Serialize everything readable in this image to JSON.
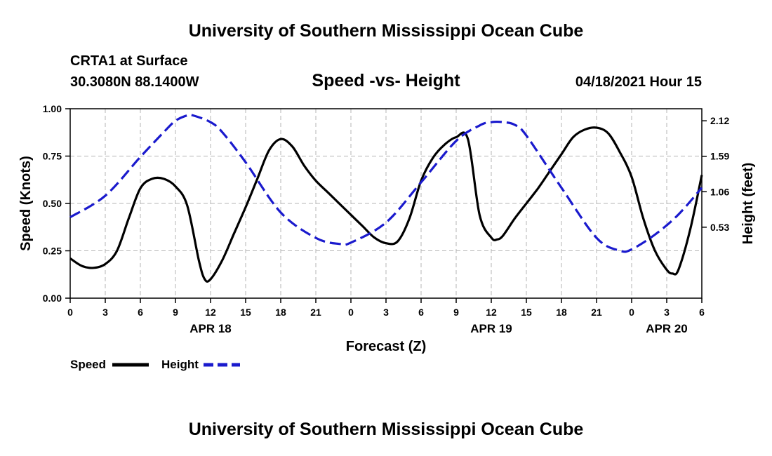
{
  "header": {
    "org_title": "University of Southern Mississippi Ocean Cube",
    "station": "CRTA1 at Surface",
    "coords": "30.3080N  88.1400W",
    "chart_title": "Speed -vs- Height",
    "datetime": "04/18/2021 Hour 15"
  },
  "footer": {
    "org_title": "University of Southern Mississippi Ocean Cube"
  },
  "colors": {
    "speed": "#000000",
    "height": "#1a1acd",
    "grid": "#b4b4b4"
  },
  "chart_data": {
    "type": "line",
    "title": "Speed -vs- Height",
    "xlabel": "Forecast (Z)",
    "ylabel": "Speed (Knots)",
    "y2label": "Height (feet)",
    "x_range_hours": [
      0,
      54
    ],
    "x_tick_labels": [
      "0",
      "3",
      "6",
      "9",
      "12",
      "15",
      "18",
      "21",
      "0",
      "3",
      "6",
      "9",
      "12",
      "15",
      "18",
      "21",
      "0",
      "3",
      "6"
    ],
    "date_labels": [
      {
        "label": "APR 18",
        "hour": 12
      },
      {
        "label": "APR 19",
        "hour": 36
      },
      {
        "label": "APR 20",
        "hour": 51
      }
    ],
    "ylim": [
      0,
      1
    ],
    "y_ticks": [
      0,
      0.25,
      0.5,
      0.75,
      1.0
    ],
    "y_tick_labels": [
      "0.00",
      "0.25",
      "0.50",
      "0.75",
      "1.00"
    ],
    "y2lim": [
      -0.53,
      2.3
    ],
    "y2_ticks": [
      0.53,
      1.06,
      1.59,
      2.12
    ],
    "y2_tick_labels": [
      "0.53",
      "1.06",
      "1.59",
      "2.12"
    ],
    "grid": true,
    "legend": [
      "Speed",
      "Height"
    ],
    "series": [
      {
        "name": "Speed",
        "axis": "left",
        "style": "solid",
        "x": [
          0,
          1,
          2,
          3,
          4,
          5,
          6,
          7,
          8,
          9,
          10,
          11,
          11.5,
          12,
          13,
          14,
          15,
          16,
          17,
          18,
          19,
          20,
          21,
          22,
          23,
          24,
          25,
          26,
          27,
          28,
          29,
          30,
          31,
          32,
          33,
          34,
          35,
          36,
          36.5,
          37,
          38,
          39,
          40,
          41,
          42,
          43,
          44,
          45,
          46,
          47,
          48,
          49,
          50,
          51,
          51.5,
          52,
          53,
          54
        ],
        "values": [
          0.21,
          0.17,
          0.16,
          0.18,
          0.25,
          0.42,
          0.58,
          0.63,
          0.63,
          0.59,
          0.49,
          0.2,
          0.1,
          0.1,
          0.2,
          0.34,
          0.48,
          0.63,
          0.78,
          0.84,
          0.8,
          0.7,
          0.62,
          0.56,
          0.5,
          0.44,
          0.38,
          0.32,
          0.29,
          0.3,
          0.42,
          0.62,
          0.74,
          0.81,
          0.85,
          0.84,
          0.44,
          0.32,
          0.31,
          0.33,
          0.42,
          0.5,
          0.58,
          0.67,
          0.76,
          0.85,
          0.89,
          0.9,
          0.87,
          0.77,
          0.64,
          0.42,
          0.25,
          0.15,
          0.13,
          0.15,
          0.36,
          0.65
        ]
      },
      {
        "name": "Height",
        "axis": "right",
        "style": "dashed",
        "x": [
          0,
          3,
          6,
          8,
          9,
          10,
          10.5,
          12,
          13,
          15,
          18,
          21,
          23,
          24,
          27,
          30,
          33,
          35,
          36,
          37,
          38,
          39,
          42,
          45,
          47,
          48,
          50,
          52,
          54
        ],
        "values": [
          0.68,
          1.0,
          1.58,
          1.95,
          2.12,
          2.2,
          2.2,
          2.1,
          1.95,
          1.5,
          0.75,
          0.37,
          0.28,
          0.3,
          0.6,
          1.2,
          1.82,
          2.05,
          2.1,
          2.1,
          2.06,
          1.9,
          1.12,
          0.37,
          0.18,
          0.2,
          0.42,
          0.72,
          1.12
        ]
      }
    ]
  }
}
